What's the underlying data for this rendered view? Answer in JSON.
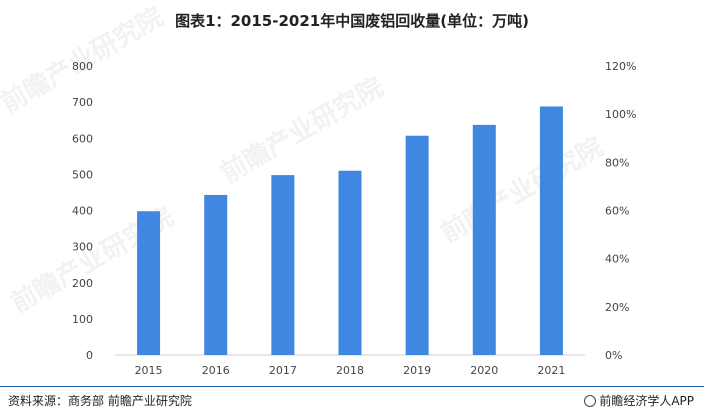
{
  "title": "图表1：2015-2021年中国废铝回收量(单位：万吨)",
  "source": "资料来源：商务部 前瞻产业研究院",
  "brand": "前瞻经济学人APP",
  "watermark": "前瞻产业研究院",
  "chart_data": {
    "type": "bar",
    "categories": [
      "2015",
      "2016",
      "2017",
      "2018",
      "2019",
      "2020",
      "2021"
    ],
    "values": [
      398,
      443,
      498,
      510,
      607,
      637,
      688
    ],
    "ylim": [
      0,
      800
    ],
    "yticks": [
      0,
      100,
      200,
      300,
      400,
      500,
      600,
      700,
      800
    ],
    "y2lim": [
      0,
      120
    ],
    "y2ticks": [
      "0%",
      "20%",
      "40%",
      "60%",
      "80%",
      "100%",
      "120%"
    ],
    "bar_color": "#3f87e0",
    "grid": false,
    "legend": "none"
  }
}
